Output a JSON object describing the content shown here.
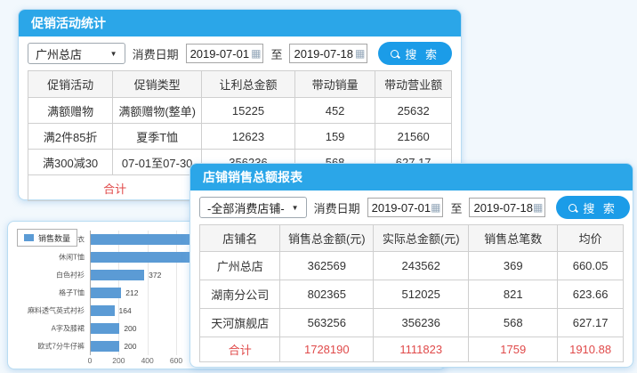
{
  "colors": {
    "titlebar": "#2BA6E8",
    "search_button": "#1B9CE8",
    "bar": "#5B9BD5",
    "total_red": "#E04A4A"
  },
  "panel1": {
    "title": "促销活动统计",
    "store_select": "广州总店",
    "date_label": "消费日期",
    "date_from": "2019-07-01",
    "to_label": "至",
    "date_to": "2019-07-18",
    "search_label": "搜 索",
    "table": {
      "headers": [
        "促销活动",
        "促销类型",
        "让利总金额",
        "带动销量",
        "带动营业额"
      ],
      "rows": [
        [
          "满额赠物",
          "满额赠物(整单)",
          "15225",
          "452",
          "25632"
        ],
        [
          "满2件85折",
          "夏季T恤",
          "12623",
          "159",
          "21560"
        ],
        [
          "满300减30",
          "07-01至07-30",
          "356236",
          "568",
          "627.17"
        ]
      ],
      "total_label": "合计"
    }
  },
  "panel2": {
    "title": "店铺销售总额报表",
    "store_select": "-全部消费店铺-",
    "date_label": "消费日期",
    "date_from": "2019-07-01",
    "to_label": "至",
    "date_to": "2019-07-18",
    "search_label": "搜 索",
    "table": {
      "headers": [
        "店铺名",
        "销售总金额(元)",
        "实际总金额(元)",
        "销售总笔数",
        "均价"
      ],
      "rows": [
        [
          "广州总店",
          "362569",
          "243562",
          "369",
          "660.05"
        ],
        [
          "湖南分公司",
          "802365",
          "512025",
          "821",
          "623.66"
        ],
        [
          "天河旗舰店",
          "563256",
          "356236",
          "568",
          "627.17"
        ]
      ],
      "total_row": [
        "合计",
        "1728190",
        "1111823",
        "1759",
        "1910.88"
      ]
    }
  },
  "chart_data": {
    "type": "bar",
    "orientation": "horizontal",
    "legend": "销售数量",
    "legend_position": "top-left",
    "grid": true,
    "categories": [
      "防晒衣",
      "休闲T恤",
      "白色衬衫",
      "格子T恤",
      "麻料透气英式衬衫",
      "A字及膝裙",
      "欧式7分牛仔裤"
    ],
    "values": [
      710,
      710,
      372,
      212,
      164,
      200,
      200
    ],
    "value_labels": [
      "",
      "",
      "372",
      "212",
      "164",
      "200",
      "200"
    ],
    "xticks": [
      0,
      200,
      400,
      600
    ],
    "xlim": [
      0,
      600
    ],
    "note": "first two bars extend under the overlapping report panel, their value labels are hidden"
  }
}
